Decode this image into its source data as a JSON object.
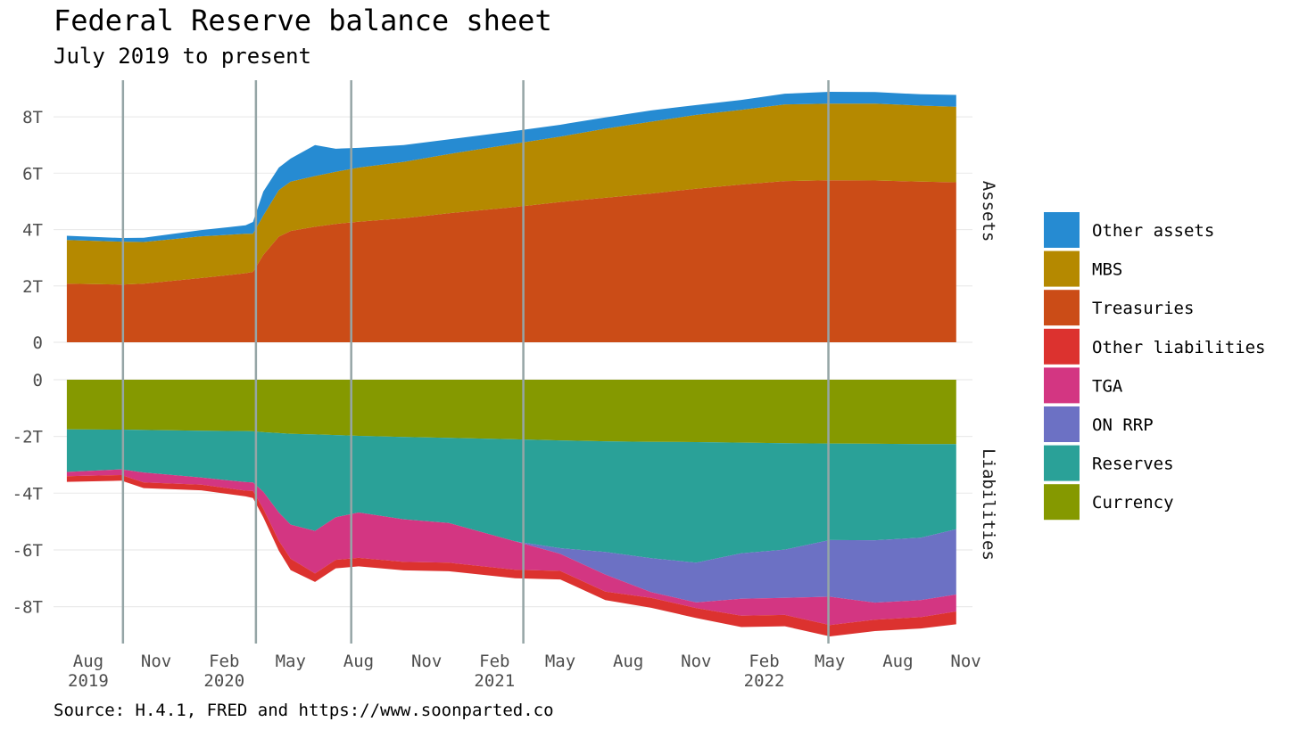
{
  "chart_data": {
    "type": "area",
    "title": "Federal Reserve balance sheet",
    "subtitle": "July 2019 to present",
    "caption": "Source: H.4.1, FRED and https://www.soonparted.co",
    "x_ticks": [
      {
        "date": "2019-08-01",
        "label": "Aug",
        "year": "2019"
      },
      {
        "date": "2019-11-01",
        "label": "Nov",
        "year": ""
      },
      {
        "date": "2020-02-01",
        "label": "Feb",
        "year": "2020"
      },
      {
        "date": "2020-05-01",
        "label": "May",
        "year": ""
      },
      {
        "date": "2020-08-01",
        "label": "Aug",
        "year": ""
      },
      {
        "date": "2020-11-01",
        "label": "Nov",
        "year": ""
      },
      {
        "date": "2021-02-01",
        "label": "Feb",
        "year": "2021"
      },
      {
        "date": "2021-05-01",
        "label": "May",
        "year": ""
      },
      {
        "date": "2021-08-01",
        "label": "Aug",
        "year": ""
      },
      {
        "date": "2021-11-01",
        "label": "Nov",
        "year": ""
      },
      {
        "date": "2022-02-01",
        "label": "Feb",
        "year": "2022"
      },
      {
        "date": "2022-05-01",
        "label": "May",
        "year": ""
      },
      {
        "date": "2022-08-01",
        "label": "Aug",
        "year": ""
      },
      {
        "date": "2022-11-01",
        "label": "Nov",
        "year": ""
      }
    ],
    "x_range": [
      "2019-06-15",
      "2022-11-10"
    ],
    "event_dates": [
      "2019-09-17",
      "2020-03-15",
      "2020-07-22",
      "2021-03-12",
      "2022-04-29"
    ],
    "panels": [
      {
        "label": "Assets",
        "ylim": [
          0,
          9.3
        ],
        "y_ticks": [
          {
            "value": 0,
            "label": "0"
          },
          {
            "value": 2,
            "label": "2T"
          },
          {
            "value": 4,
            "label": "4T"
          },
          {
            "value": 6,
            "label": "6T"
          },
          {
            "value": 8,
            "label": "8T"
          }
        ],
        "series": [
          {
            "name": "Treasuries",
            "color": "#CB4C17"
          },
          {
            "name": "MBS",
            "color": "#B58900"
          },
          {
            "name": "Other assets",
            "color": "#268BD2"
          }
        ]
      },
      {
        "label": "Liabilities",
        "ylim": [
          -9.3,
          0
        ],
        "y_ticks": [
          {
            "value": 0,
            "label": "0"
          },
          {
            "value": -2,
            "label": "-2T"
          },
          {
            "value": -4,
            "label": "-4T"
          },
          {
            "value": -6,
            "label": "-6T"
          },
          {
            "value": -8,
            "label": "-8T"
          }
        ],
        "series": [
          {
            "name": "Currency",
            "color": "#859900"
          },
          {
            "name": "Reserves",
            "color": "#2AA198"
          },
          {
            "name": "ON RRP",
            "color": "#6C71C4"
          },
          {
            "name": "TGA",
            "color": "#D33682"
          },
          {
            "name": "Other liabilities",
            "color": "#DC322F"
          }
        ]
      }
    ],
    "legend": {
      "position": "right",
      "items": [
        {
          "name": "Other assets",
          "color": "#268BD2"
        },
        {
          "name": "MBS",
          "color": "#B58900"
        },
        {
          "name": "Treasuries",
          "color": "#CB4C17"
        },
        {
          "name": "Other liabilities",
          "color": "#DC322F"
        },
        {
          "name": "TGA",
          "color": "#D33682"
        },
        {
          "name": "ON RRP",
          "color": "#6C71C4"
        },
        {
          "name": "Reserves",
          "color": "#2AA198"
        },
        {
          "name": "Currency",
          "color": "#859900"
        }
      ]
    },
    "grid": true,
    "data_dates": [
      "2019-07-03",
      "2019-09-15",
      "2019-10-15",
      "2020-01-01",
      "2020-03-01",
      "2020-03-11",
      "2020-03-25",
      "2020-04-15",
      "2020-05-01",
      "2020-06-03",
      "2020-07-01",
      "2020-08-01",
      "2020-10-01",
      "2020-12-01",
      "2021-03-01",
      "2021-05-01",
      "2021-07-01",
      "2021-09-01",
      "2021-11-01",
      "2022-01-01",
      "2022-03-01",
      "2022-05-01",
      "2022-07-01",
      "2022-09-01",
      "2022-10-19"
    ],
    "assets": {
      "Treasuries": [
        2.08,
        2.05,
        2.08,
        2.28,
        2.45,
        2.5,
        3.1,
        3.75,
        3.95,
        4.1,
        4.2,
        4.28,
        4.4,
        4.58,
        4.8,
        4.98,
        5.13,
        5.28,
        5.45,
        5.6,
        5.72,
        5.75,
        5.74,
        5.7,
        5.68
      ],
      "MBS": [
        1.55,
        1.52,
        1.48,
        1.48,
        1.4,
        1.35,
        1.4,
        1.65,
        1.75,
        1.8,
        1.85,
        1.92,
        2.0,
        2.1,
        2.25,
        2.32,
        2.45,
        2.55,
        2.62,
        2.65,
        2.72,
        2.72,
        2.73,
        2.7,
        2.68
      ],
      "Other assets": [
        0.15,
        0.13,
        0.15,
        0.22,
        0.3,
        0.42,
        0.85,
        0.8,
        0.82,
        1.1,
        0.82,
        0.7,
        0.6,
        0.52,
        0.45,
        0.42,
        0.4,
        0.4,
        0.35,
        0.35,
        0.38,
        0.42,
        0.41,
        0.4,
        0.42
      ]
    },
    "liabilities": {
      "Currency": [
        1.75,
        1.76,
        1.77,
        1.8,
        1.81,
        1.82,
        1.85,
        1.88,
        1.91,
        1.93,
        1.95,
        1.98,
        2.02,
        2.05,
        2.1,
        2.14,
        2.17,
        2.19,
        2.2,
        2.22,
        2.24,
        2.25,
        2.26,
        2.27,
        2.27
      ],
      "Reserves": [
        1.5,
        1.4,
        1.5,
        1.65,
        1.8,
        1.8,
        2.1,
        2.8,
        3.2,
        3.4,
        2.9,
        2.7,
        2.9,
        3.0,
        3.6,
        3.8,
        3.9,
        4.1,
        4.25,
        3.9,
        3.75,
        3.4,
        3.4,
        3.3,
        3.0
      ],
      "ON RRP": [
        0.0,
        0.0,
        0.0,
        0.0,
        0.0,
        0.0,
        0.0,
        0.0,
        0.0,
        0.0,
        0.0,
        0.0,
        0.0,
        0.0,
        0.0,
        0.2,
        0.8,
        1.2,
        1.4,
        1.6,
        1.7,
        2.0,
        2.2,
        2.2,
        2.3
      ],
      "TGA": [
        0.15,
        0.2,
        0.35,
        0.25,
        0.3,
        0.3,
        0.6,
        1.0,
        1.2,
        1.5,
        1.5,
        1.6,
        1.5,
        1.4,
        1.0,
        0.6,
        0.6,
        0.2,
        0.2,
        0.6,
        0.6,
        1.0,
        0.6,
        0.6,
        0.6
      ],
      "Other liabilities": [
        0.2,
        0.2,
        0.2,
        0.2,
        0.2,
        0.25,
        0.3,
        0.35,
        0.4,
        0.3,
        0.3,
        0.3,
        0.3,
        0.3,
        0.3,
        0.3,
        0.3,
        0.35,
        0.35,
        0.4,
        0.4,
        0.4,
        0.4,
        0.4,
        0.45
      ]
    }
  }
}
